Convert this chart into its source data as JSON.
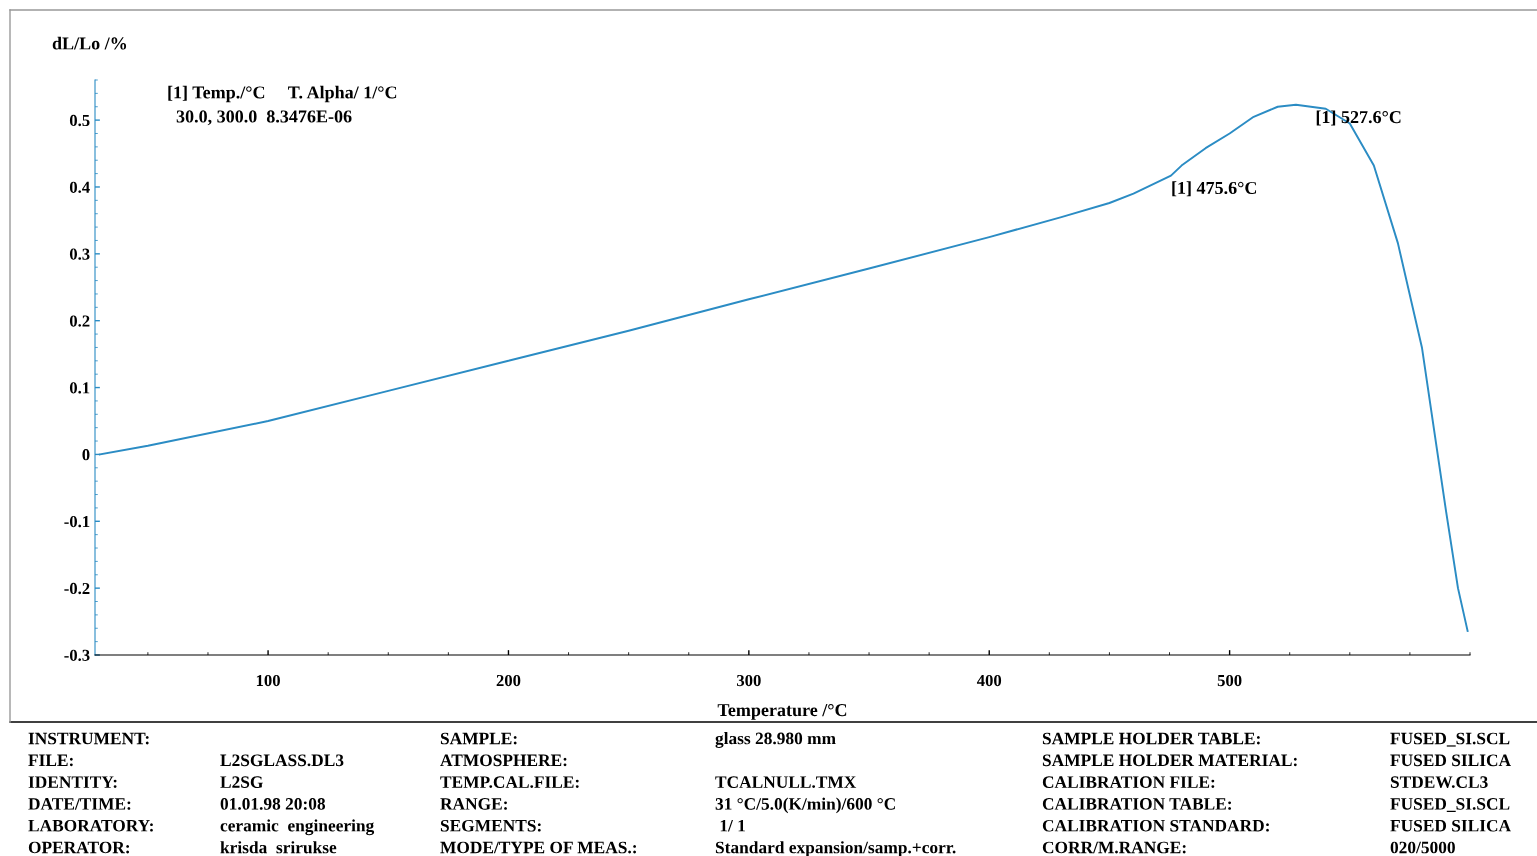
{
  "chart_data": {
    "type": "line",
    "xlabel": "Temperature /°C",
    "ylabel": "dL/Lo /%",
    "x": [
      30,
      50,
      100,
      150,
      200,
      250,
      300,
      350,
      400,
      430,
      450,
      460,
      475.6,
      480,
      490,
      500,
      510,
      520,
      527.6,
      540,
      550,
      560,
      570,
      580,
      590,
      595,
      599
    ],
    "series": [
      {
        "color": "#2b8cc4",
        "values": [
          0,
          0.013,
          0.05,
          0.095,
          0.14,
          0.185,
          0.232,
          0.278,
          0.325,
          0.355,
          0.376,
          0.39,
          0.417,
          0.432,
          0.458,
          0.48,
          0.505,
          0.52,
          0.523,
          0.517,
          0.495,
          0.432,
          0.316,
          0.16,
          -0.084,
          -0.2,
          -0.264
        ]
      }
    ],
    "xlim": [
      28,
      600
    ],
    "ylim": [
      -0.3,
      0.56
    ],
    "xticks": [
      100,
      200,
      300,
      400,
      500
    ],
    "yticks": [
      -0.3,
      -0.2,
      -0.1,
      0,
      0.1,
      0.2,
      0.3,
      0.4,
      0.5
    ],
    "grid": false,
    "legend": false,
    "marker": "none",
    "line_style": "solid",
    "annotations": [
      "[1] Temp./°C     T. Alpha/ 1/°C",
      "  30.0, 300.0  8.3476E-06",
      {
        "text": "[1] 475.6°C",
        "x": 475.6,
        "y": 0.417
      },
      {
        "text": "[1] 527.6°C",
        "x": 527.6,
        "y": 0.523
      },
      "INSTRUMENT:",
      null,
      "SAMPLE:",
      "glass 28.980 mm",
      "SAMPLE HOLDER TABLE:",
      "FUSED_SI.SCL",
      "FILE:",
      "L2SGLASS.DL3",
      "ATMOSPHERE:",
      null,
      "SAMPLE HOLDER MATERIAL:",
      "FUSED SILICA",
      "IDENTITY:",
      "L2SG",
      "TEMP.CAL.FILE:",
      "TCALNULL.TMX",
      "CALIBRATION FILE:",
      "STDEW.CL3",
      "DATE/TIME:",
      "01.01.98 20:08",
      "RANGE:",
      "31 °C/5.0(K/min)/600 °C",
      "CALIBRATION TABLE:",
      "FUSED_SI.SCL",
      "LABORATORY:",
      "ceramic  engineering",
      "SEGMENTS:",
      " 1/ 1",
      "CALIBRATION STANDARD:",
      "FUSED SILICA",
      "OPERATOR:",
      "krisda  srirukse",
      "MODE/TYPE OF MEAS.:",
      "Standard expansion/samp.+corr.",
      "CORR/M.RANGE:",
      "020/5000"
    ]
  }
}
